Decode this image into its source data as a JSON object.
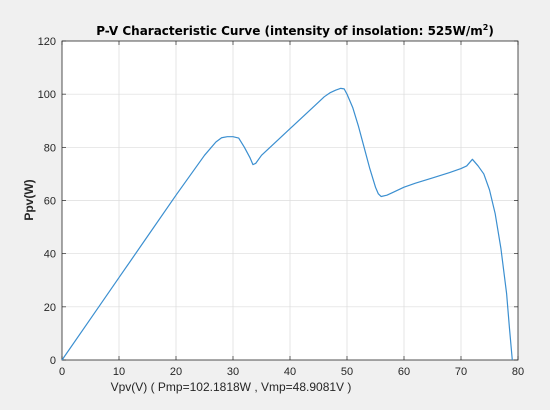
{
  "chart_data": {
    "type": "line",
    "title_main": "P-V Characteristic Curve (intensity of insolation: 525W/m",
    "title_sup": "2",
    "title_end": ")",
    "xlabel": "Vpv(V) ( Pmp=102.1818W , Vmp=48.9081V )",
    "ylabel": "Ppv(W)",
    "xlim": [
      0,
      80
    ],
    "ylim": [
      0,
      120
    ],
    "xticks": [
      0,
      10,
      20,
      30,
      40,
      50,
      60,
      70,
      80
    ],
    "yticks": [
      0,
      20,
      40,
      60,
      80,
      100,
      120
    ],
    "grid": true,
    "line_color": "#3b8fd0",
    "series": [
      {
        "x": [
          0,
          5,
          10,
          15,
          20,
          25,
          27,
          28,
          29,
          30,
          31,
          32,
          33,
          33.5,
          34,
          35,
          37,
          40,
          43,
          45,
          46,
          47,
          48,
          48.9081,
          49.5,
          50,
          51,
          52,
          53,
          54,
          55,
          55.5,
          56,
          57,
          58,
          60,
          62,
          65,
          68,
          70,
          71,
          72,
          73,
          74,
          75,
          76,
          77,
          78,
          78.5,
          79
        ],
        "y": [
          0,
          15.5,
          31,
          46.5,
          62,
          77,
          82,
          83.6,
          84,
          84,
          83.5,
          80,
          76,
          73.5,
          74,
          77,
          81,
          87,
          93,
          97,
          99,
          100.5,
          101.5,
          102.18,
          102,
          100,
          95,
          88,
          80,
          72,
          65,
          62.5,
          61.5,
          62,
          63,
          65,
          66.5,
          68.5,
          70.5,
          72,
          73,
          75.5,
          73,
          70,
          64,
          55,
          42,
          25,
          12,
          0
        ]
      }
    ]
  }
}
